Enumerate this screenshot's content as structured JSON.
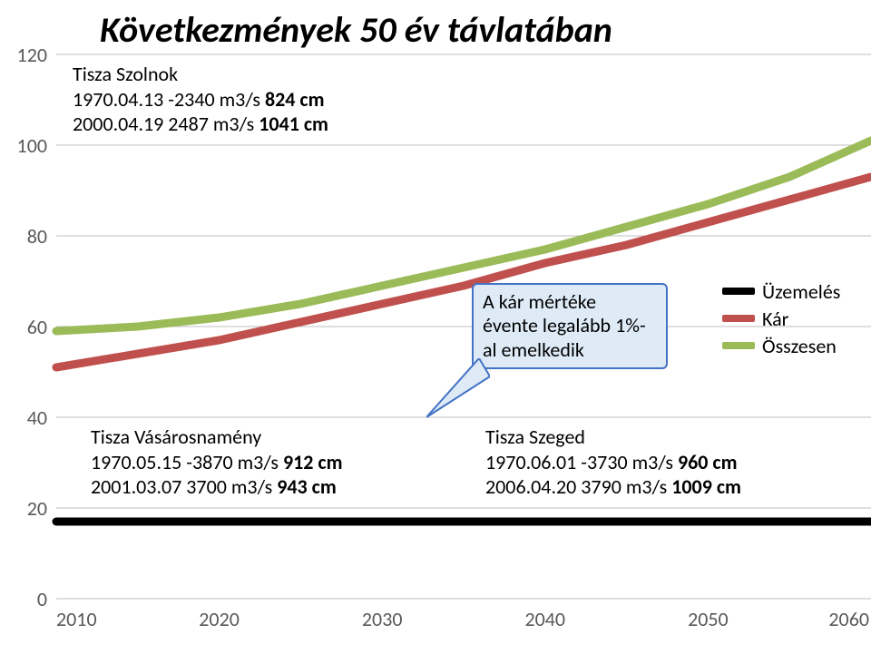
{
  "title": "Következmények 50 év távlatában",
  "chart": {
    "background_color": "#ffffff",
    "grid_color": "#bfbfbf",
    "axis_text_color": "#595959",
    "axis_font_size": 22,
    "line_width": 9,
    "y": {
      "min": 0,
      "max": 120,
      "ticks": [
        0,
        20,
        40,
        60,
        80,
        100,
        120
      ],
      "tick_step": 20
    },
    "x": {
      "min": 2010,
      "max": 2060,
      "ticks": [
        2010,
        2020,
        2030,
        2040,
        2050,
        2060
      ]
    },
    "series": [
      {
        "name": "Üzemelés",
        "color": "#000000",
        "points": [
          [
            2010,
            17
          ],
          [
            2015,
            17
          ],
          [
            2020,
            17
          ],
          [
            2025,
            17
          ],
          [
            2030,
            17
          ],
          [
            2035,
            17
          ],
          [
            2040,
            17
          ],
          [
            2045,
            17
          ],
          [
            2050,
            17
          ],
          [
            2055,
            17
          ],
          [
            2060,
            17
          ]
        ]
      },
      {
        "name": "Kár",
        "color": "#c0504d",
        "points": [
          [
            2010,
            51
          ],
          [
            2015,
            54
          ],
          [
            2020,
            57
          ],
          [
            2025,
            61
          ],
          [
            2030,
            65
          ],
          [
            2035,
            69
          ],
          [
            2040,
            74
          ],
          [
            2045,
            78
          ],
          [
            2050,
            83
          ],
          [
            2055,
            88
          ],
          [
            2060,
            93
          ]
        ]
      },
      {
        "name": "Összesen",
        "color": "#9bbb59",
        "points": [
          [
            2010,
            59
          ],
          [
            2015,
            60
          ],
          [
            2020,
            62
          ],
          [
            2025,
            65
          ],
          [
            2030,
            69
          ],
          [
            2035,
            73
          ],
          [
            2040,
            77
          ],
          [
            2045,
            82
          ],
          [
            2050,
            87
          ],
          [
            2055,
            93
          ],
          [
            2060,
            101
          ]
        ]
      }
    ]
  },
  "legend": {
    "items": [
      {
        "label": "Üzemelés",
        "color": "#000000"
      },
      {
        "label": "Kár",
        "color": "#c0504d"
      },
      {
        "label": "Összesen",
        "color": "#9bbb59"
      }
    ]
  },
  "text_blocks": {
    "szolnok": {
      "header": "Tisza Szolnok",
      "line1_a": "1970.04.13 -2340 m3/s  ",
      "line1_b": "824 cm",
      "line2_a": "2000.04.19  2487 m3/s  ",
      "line2_b": "1041 cm"
    },
    "vasarosnameny": {
      "header": "Tisza Vásárosnamény",
      "line1_a": "1970.05.15 -3870 m3/s  ",
      "line1_b": "912 cm",
      "line2_a": "2001.03.07  3700 m3/s  ",
      "line2_b": "943 cm"
    },
    "szeged": {
      "header": "Tisza Szeged",
      "line1_a": "1970.06.01 -3730 m3/s  ",
      "line1_b": "960 cm",
      "line2_a": "2006.04.20  3790 m3/s  ",
      "line2_b": "1009 cm"
    }
  },
  "callout": {
    "line1": "A kár mértéke",
    "line2": "évente legalább 1%-",
    "line3": "al emelkedik",
    "border_color": "#4472c4",
    "fill_color": "#deebf7"
  }
}
